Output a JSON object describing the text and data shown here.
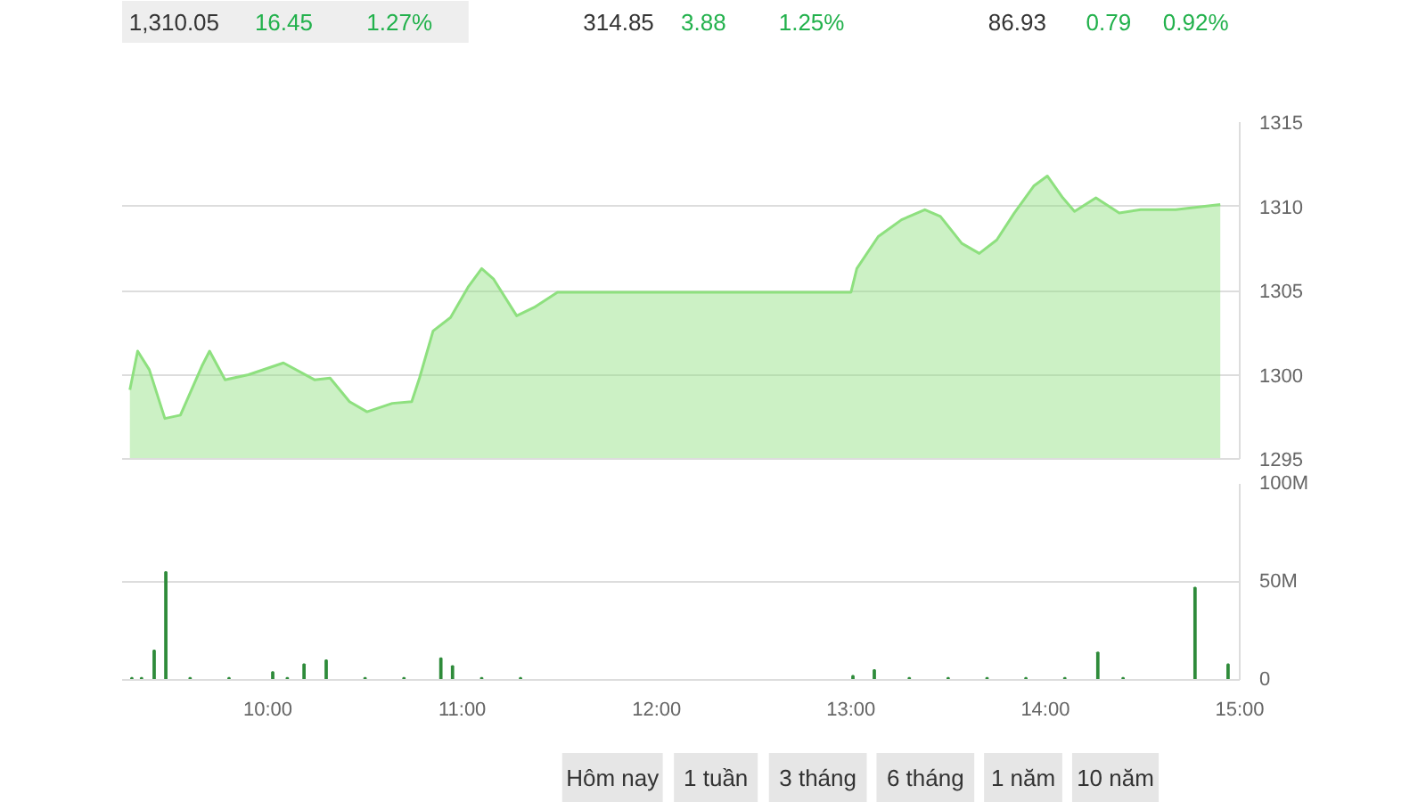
{
  "chart_data": [
    {
      "type": "area",
      "annotations": [
        "1,310.05",
        "16.45",
        "1.27%",
        "314.85",
        "3.88",
        "1.25%",
        "86.93",
        "0.79",
        "0.92%"
      ],
      "x": [
        9.29,
        9.33,
        9.39,
        9.47,
        9.55,
        9.66,
        9.7,
        9.78,
        9.9,
        10.08,
        10.24,
        10.32,
        10.42,
        10.51,
        10.64,
        10.74,
        10.78,
        10.85,
        10.94,
        11.03,
        11.1,
        11.16,
        11.28,
        11.37,
        11.49,
        13.0,
        13.03,
        13.14,
        13.26,
        13.38,
        13.46,
        13.57,
        13.66,
        13.75,
        13.84,
        13.94,
        14.01,
        14.09,
        14.15,
        14.26,
        14.38,
        14.49,
        14.67,
        14.9
      ],
      "series": [
        {
          "color": "#8ee07f",
          "values": [
            1299.1,
            1301.4,
            1300.3,
            1297.4,
            1297.6,
            1300.5,
            1301.4,
            1299.7,
            1300.0,
            1300.7,
            1299.7,
            1299.8,
            1298.4,
            1297.8,
            1298.3,
            1298.4,
            1299.8,
            1302.6,
            1303.4,
            1305.2,
            1306.3,
            1305.7,
            1303.5,
            1304.0,
            1304.9,
            1304.9,
            1306.3,
            1308.2,
            1309.2,
            1309.8,
            1309.4,
            1307.8,
            1307.2,
            1308.0,
            1309.6,
            1311.2,
            1311.8,
            1310.5,
            1309.7,
            1310.5,
            1309.6,
            1309.8,
            1309.8,
            1310.1
          ]
        }
      ],
      "xlim": [
        9.25,
        15.0
      ],
      "ylim": [
        1295,
        1315
      ],
      "yticks": [
        1295,
        1300,
        1305,
        1310,
        1315
      ],
      "tick_labels": "y",
      "grid": "y"
    },
    {
      "type": "bar",
      "annotations": [
        "Hôm nay",
        "1 tuần",
        "3 tháng",
        "6 tháng",
        "1 năm",
        "10 năm"
      ],
      "x": [
        9.3,
        9.35,
        9.415,
        9.475,
        9.6,
        9.8,
        10.025,
        10.1,
        10.186,
        10.3,
        10.5,
        10.7,
        10.89,
        10.95,
        11.1,
        11.3,
        13.01,
        13.12,
        13.3,
        13.5,
        13.7,
        13.9,
        14.1,
        14.27,
        14.4,
        14.77,
        14.94
      ],
      "series": [
        {
          "color": "#2e8b3a",
          "values": [
            1,
            1,
            15,
            55,
            1,
            1,
            4,
            1,
            8,
            10,
            1,
            1,
            11,
            7,
            1,
            1,
            2,
            5,
            1,
            1,
            1,
            1,
            1,
            14,
            1,
            47,
            8
          ]
        }
      ],
      "xlim": [
        9.25,
        15.0
      ],
      "ylim": [
        0,
        100
      ],
      "yticks": [
        0,
        {
          "value": 50,
          "label": "50M"
        },
        {
          "value": 100,
          "label": "100M"
        }
      ],
      "xticks": [
        {
          "value": 10,
          "label": "10:00"
        },
        {
          "value": 11,
          "label": "11:00"
        },
        {
          "value": 12,
          "label": "12:00"
        },
        {
          "value": 13,
          "label": "13:00"
        },
        {
          "value": 14,
          "label": "14:00"
        },
        {
          "value": 15,
          "label": "15:00"
        }
      ],
      "grid": "y"
    }
  ]
}
